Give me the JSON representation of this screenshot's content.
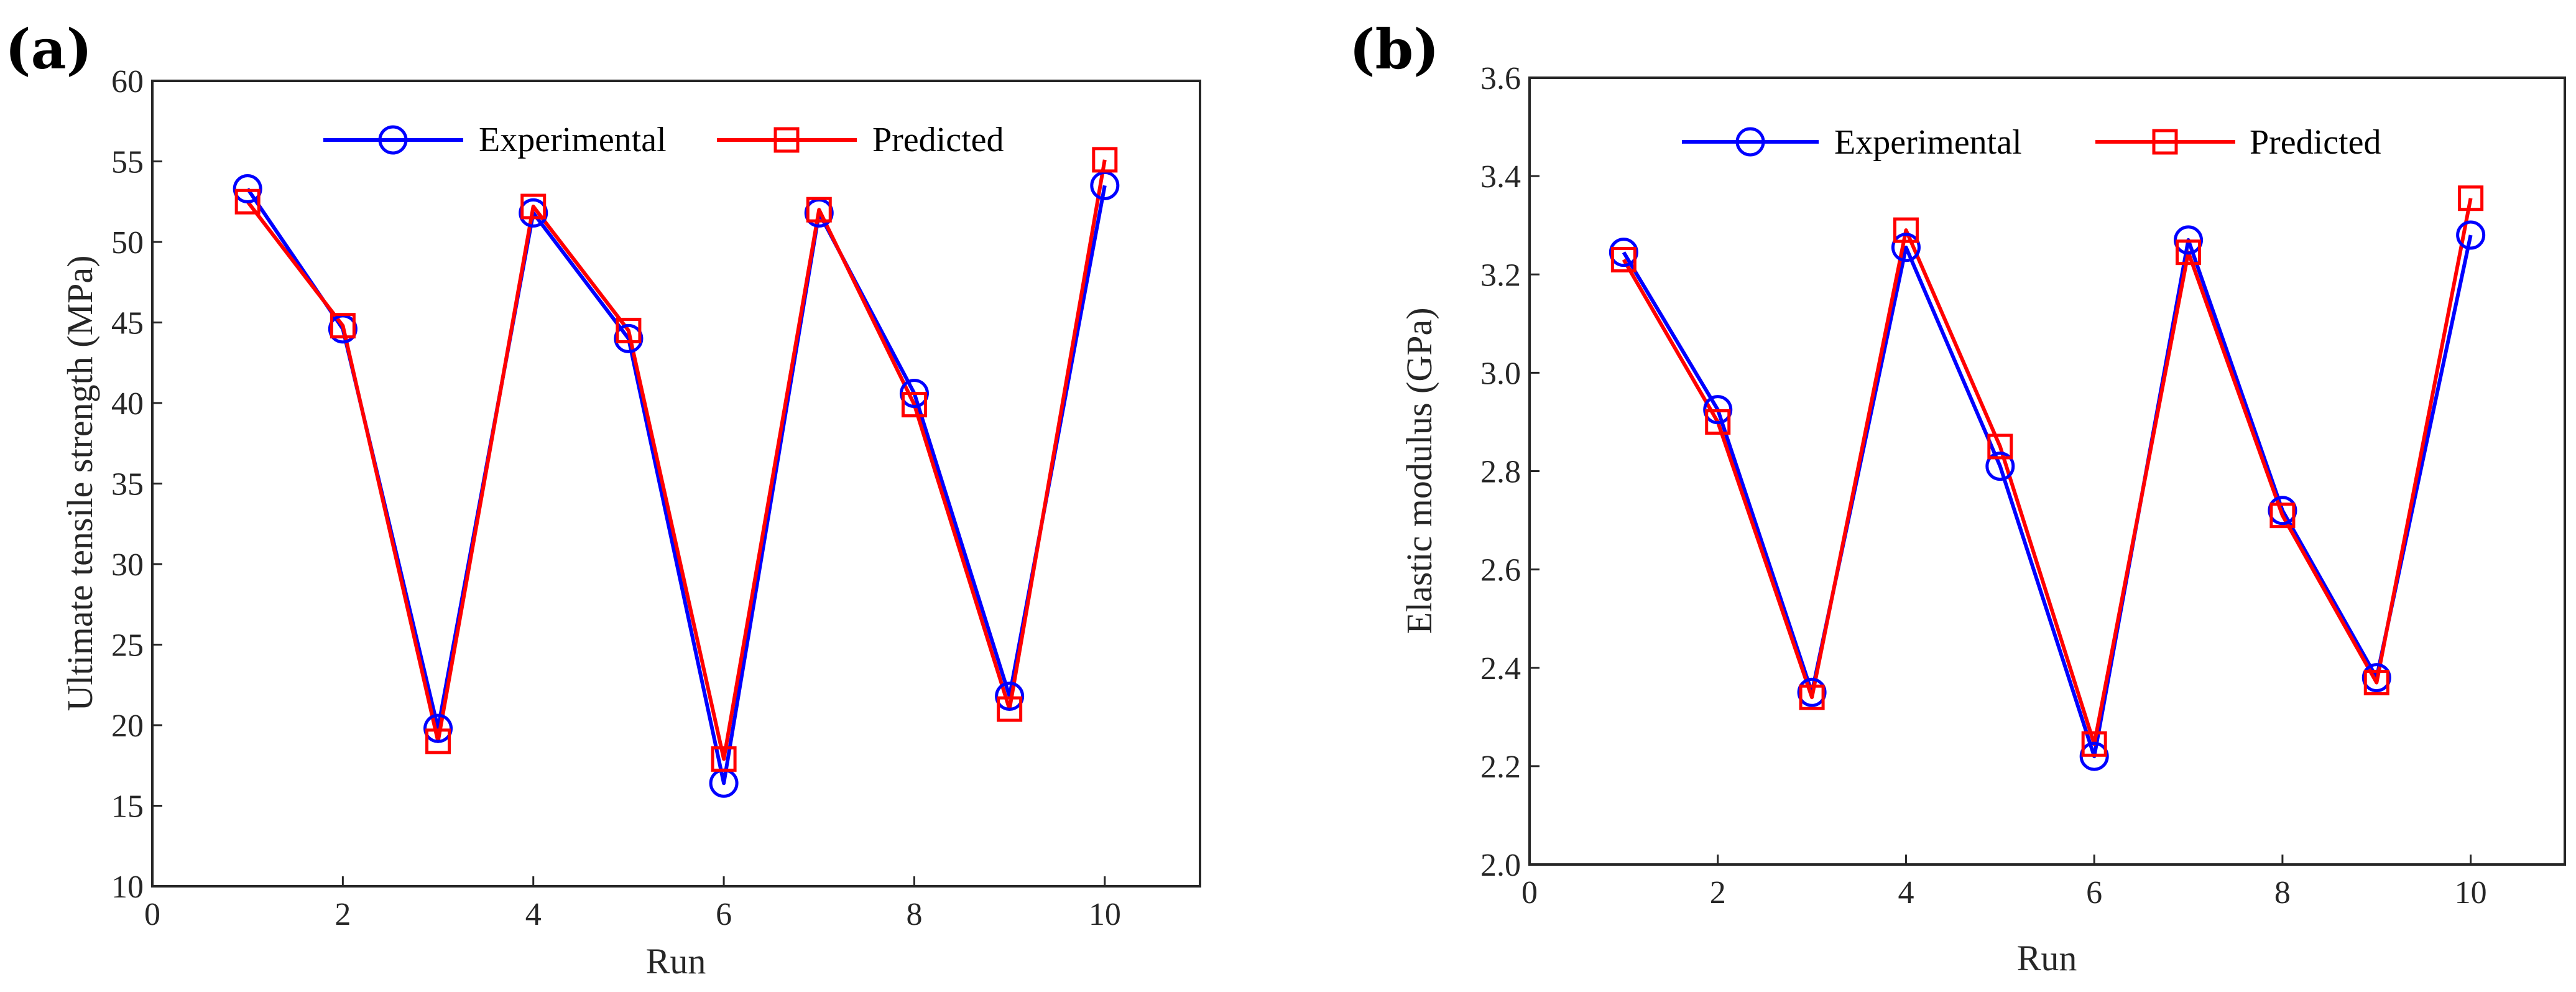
{
  "chart_data": [
    {
      "type": "line",
      "panel_label": "(a)",
      "title": "",
      "xlabel": "Run",
      "ylabel": "Ultimate tensile strength (MPa)",
      "xlim": [
        0,
        11
      ],
      "ylim": [
        10,
        60
      ],
      "xticks": [
        0,
        2,
        4,
        6,
        8,
        10
      ],
      "yticks": [
        10,
        15,
        20,
        25,
        30,
        35,
        40,
        45,
        50,
        55,
        60
      ],
      "xtick_labels": [
        "0",
        "2",
        "4",
        "6",
        "8",
        "10"
      ],
      "ytick_labels": [
        "10",
        "15",
        "20",
        "25",
        "30",
        "35",
        "40",
        "45",
        "50",
        "55",
        "60"
      ],
      "legend_position": "top",
      "grid": false,
      "x": [
        1,
        2,
        3,
        4,
        5,
        6,
        7,
        8,
        9,
        10
      ],
      "series": [
        {
          "name": "Experimental",
          "color": "#0000ff",
          "marker": "circle",
          "values": [
            53.3,
            44.6,
            19.8,
            51.8,
            44.0,
            16.4,
            51.8,
            40.6,
            21.8,
            53.5
          ]
        },
        {
          "name": "Predicted",
          "color": "#ff0000",
          "marker": "square",
          "values": [
            52.5,
            44.8,
            19.0,
            52.2,
            44.5,
            17.9,
            52.0,
            39.9,
            21.0,
            55.1
          ]
        }
      ]
    },
    {
      "type": "line",
      "panel_label": "(b)",
      "title": "",
      "xlabel": "Run",
      "ylabel": "Elastic modulus (GPa)",
      "xlim": [
        0,
        11
      ],
      "ylim": [
        2.0,
        3.6
      ],
      "xticks": [
        0,
        2,
        4,
        6,
        8,
        10
      ],
      "yticks": [
        2.0,
        2.2,
        2.4,
        2.6,
        2.8,
        3.0,
        3.2,
        3.4,
        3.6
      ],
      "xtick_labels": [
        "0",
        "2",
        "4",
        "6",
        "8",
        "10"
      ],
      "ytick_labels": [
        "2.0",
        "2.2",
        "2.4",
        "2.6",
        "2.8",
        "3.0",
        "3.2",
        "3.4",
        "3.6"
      ],
      "legend_position": "top",
      "grid": false,
      "x": [
        1,
        2,
        3,
        4,
        5,
        6,
        7,
        8,
        9,
        10
      ],
      "series": [
        {
          "name": "Experimental",
          "color": "#0000ff",
          "marker": "circle",
          "values": [
            3.245,
            2.925,
            2.35,
            3.255,
            2.81,
            2.22,
            3.27,
            2.72,
            2.38,
            3.28
          ]
        },
        {
          "name": "Predicted",
          "color": "#ff0000",
          "marker": "square",
          "values": [
            3.23,
            2.9,
            2.34,
            3.29,
            2.85,
            2.245,
            3.245,
            2.71,
            2.37,
            3.355
          ]
        }
      ]
    }
  ]
}
